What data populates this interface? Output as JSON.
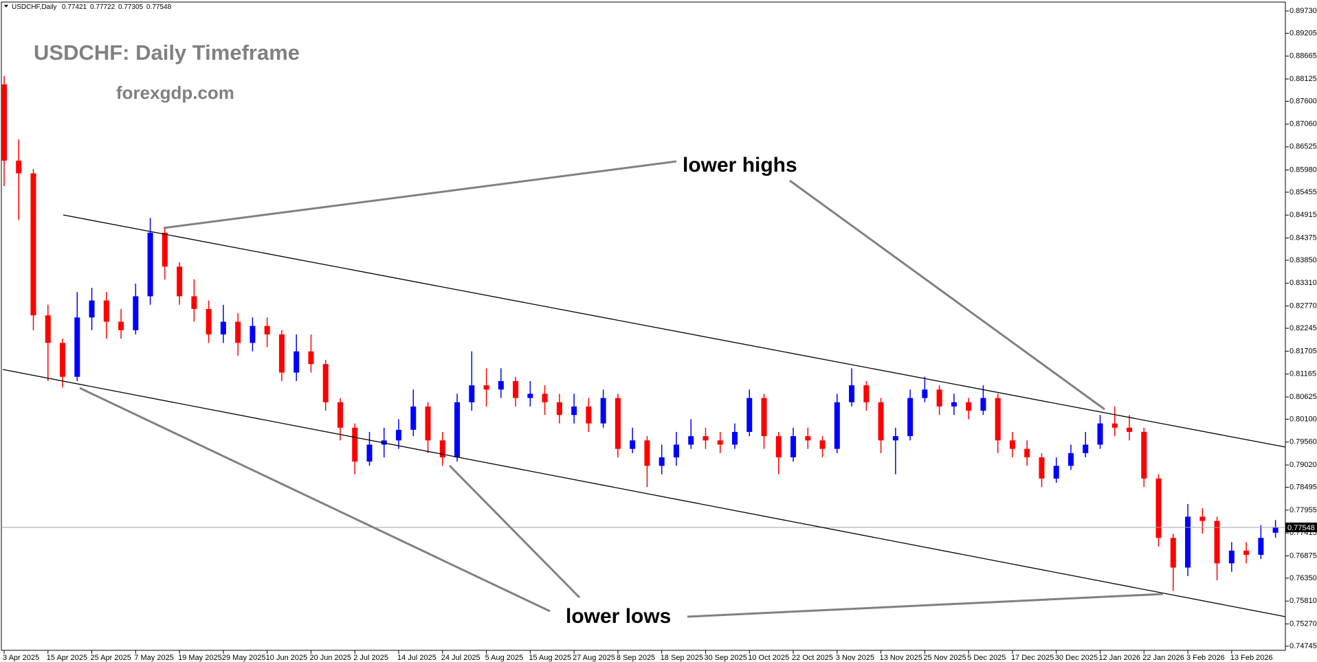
{
  "chart_data": {
    "type": "candlestick",
    "symbol": "USDCHF,Daily",
    "title": "USDCHF: Daily Timeframe",
    "subtitle": "forexgdp.com",
    "annotations": [
      "lower highs",
      "lower lows"
    ],
    "up_color": "#0000ff",
    "down_color": "#ff0000",
    "ylim": [
      0.74745,
      0.8973
    ],
    "yticks": [
      {
        "value": 0.8973,
        "label": "0.89730"
      },
      0.89205,
      0.88665,
      0.88125,
      {
        "value": 0.876,
        "label": "0.87600"
      },
      {
        "value": 0.8706,
        "label": "0.87060"
      },
      0.86525,
      {
        "value": 0.8598,
        "label": "0.85980"
      },
      0.85455,
      0.84915,
      0.84375,
      {
        "value": 0.8385,
        "label": "0.83850"
      },
      {
        "value": 0.8331,
        "label": "0.83310"
      },
      {
        "value": 0.8277,
        "label": "0.82770"
      },
      0.82245,
      0.81705,
      0.81165,
      0.80625,
      {
        "value": 0.801,
        "label": "0.80100"
      },
      {
        "value": 0.7956,
        "label": "0.79560"
      },
      {
        "value": 0.7902,
        "label": "0.79020"
      },
      0.78495,
      0.77955,
      0.77415,
      0.76875,
      {
        "value": 0.7635,
        "label": "0.76350"
      },
      {
        "value": 0.7581,
        "label": "0.75810"
      },
      {
        "value": 0.7527,
        "label": "0.75270"
      },
      0.74745
    ],
    "categories": [
      "3 Apr 2025",
      null,
      null,
      "15 Apr 2025",
      null,
      null,
      "25 Apr 2025",
      null,
      null,
      "7 May 2025",
      null,
      null,
      "19 May 2025",
      null,
      null,
      "29 May 2025",
      null,
      null,
      "10 Jun 2025",
      null,
      null,
      "20 Jun 2025",
      null,
      null,
      "2 Jul 2025",
      null,
      null,
      "14 Jul 2025",
      null,
      null,
      "24 Jul 2025",
      null,
      null,
      "5 Aug 2025",
      null,
      null,
      "15 Aug 2025",
      null,
      null,
      "27 Aug 2025",
      null,
      null,
      "8 Sep 2025",
      null,
      null,
      "18 Sep 2025",
      null,
      null,
      "30 Sep 2025",
      null,
      null,
      "10 Oct 2025",
      null,
      null,
      "22 Oct 2025",
      null,
      null,
      "3 Nov 2025",
      null,
      null,
      "13 Nov 2025",
      null,
      null,
      "25 Nov 2025",
      null,
      null,
      "5 Dec 2025",
      null,
      null,
      "17 Dec 2025",
      null,
      null,
      "30 Dec 2025",
      null,
      null,
      "12 Jan 2026",
      null,
      null,
      "22 Jan 2026",
      null,
      null,
      "3 Feb 2026",
      null,
      null,
      "13 Feb 2026",
      null,
      null,
      null
    ],
    "open": [
      0.88,
      0.862,
      0.859,
      0.8255,
      0.819,
      0.811,
      0.825,
      0.829,
      0.824,
      0.822,
      0.83,
      0.845,
      0.837,
      0.83,
      0.827,
      0.821,
      0.824,
      0.819,
      0.823,
      0.821,
      0.812,
      0.817,
      0.814,
      0.805,
      0.799,
      0.791,
      0.795,
      0.796,
      0.7985,
      0.804,
      0.796,
      0.792,
      0.805,
      0.809,
      0.808,
      0.81,
      0.806,
      0.807,
      0.805,
      0.802,
      0.804,
      0.8,
      0.806,
      0.794,
      0.796,
      0.79,
      0.792,
      0.795,
      0.797,
      0.796,
      0.795,
      0.798,
      0.806,
      0.797,
      0.792,
      0.797,
      0.796,
      0.794,
      0.805,
      0.809,
      0.805,
      0.796,
      0.797,
      0.806,
      0.808,
      0.804,
      0.805,
      0.803,
      0.806,
      0.796,
      0.794,
      0.792,
      0.787,
      0.79,
      0.793,
      0.795,
      0.8,
      0.799,
      0.798,
      0.787,
      0.773,
      0.766,
      0.778,
      0.777,
      0.767,
      0.77,
      0.769,
      0.77421
    ],
    "high": [
      0.882,
      0.867,
      0.86,
      0.828,
      0.82,
      0.831,
      0.832,
      0.831,
      0.827,
      0.833,
      0.8485,
      0.846,
      0.838,
      0.834,
      0.829,
      0.828,
      0.826,
      0.825,
      0.825,
      0.822,
      0.821,
      0.821,
      0.815,
      0.806,
      0.8,
      0.798,
      0.799,
      0.801,
      0.808,
      0.805,
      0.798,
      0.807,
      0.817,
      0.813,
      0.813,
      0.811,
      0.81,
      0.809,
      0.807,
      0.807,
      0.806,
      0.808,
      0.807,
      0.799,
      0.797,
      0.795,
      0.798,
      0.801,
      0.799,
      0.798,
      0.8,
      0.808,
      0.807,
      0.798,
      0.799,
      0.799,
      0.797,
      0.807,
      0.813,
      0.81,
      0.806,
      0.799,
      0.808,
      0.811,
      0.809,
      0.807,
      0.806,
      0.809,
      0.807,
      0.798,
      0.796,
      0.793,
      0.792,
      0.795,
      0.798,
      0.802,
      0.804,
      0.802,
      0.799,
      0.788,
      0.774,
      0.781,
      0.78,
      0.778,
      0.772,
      0.772,
      0.776,
      0.77722
    ],
    "low": [
      0.856,
      0.848,
      0.822,
      0.81,
      0.8085,
      0.81,
      0.822,
      0.82,
      0.82,
      0.821,
      0.828,
      0.834,
      0.828,
      0.824,
      0.819,
      0.819,
      0.816,
      0.817,
      0.818,
      0.81,
      0.81,
      0.812,
      0.803,
      0.796,
      0.788,
      0.79,
      0.792,
      0.794,
      0.797,
      0.793,
      0.79,
      0.791,
      0.803,
      0.804,
      0.806,
      0.804,
      0.804,
      0.802,
      0.8,
      0.8,
      0.798,
      0.799,
      0.792,
      0.793,
      0.785,
      0.788,
      0.79,
      0.794,
      0.794,
      0.793,
      0.794,
      0.797,
      0.794,
      0.788,
      0.791,
      0.794,
      0.792,
      0.793,
      0.804,
      0.803,
      0.793,
      0.788,
      0.796,
      0.805,
      0.802,
      0.802,
      0.801,
      0.802,
      0.793,
      0.792,
      0.79,
      0.785,
      0.786,
      0.789,
      0.792,
      0.794,
      0.797,
      0.796,
      0.785,
      0.771,
      0.7605,
      0.764,
      0.774,
      0.763,
      0.765,
      0.767,
      0.768,
      0.77305
    ],
    "close": [
      0.862,
      0.859,
      0.8255,
      0.819,
      0.811,
      0.825,
      0.829,
      0.824,
      0.822,
      0.83,
      0.845,
      0.837,
      0.83,
      0.827,
      0.821,
      0.824,
      0.819,
      0.823,
      0.821,
      0.812,
      0.817,
      0.814,
      0.805,
      0.799,
      0.791,
      0.795,
      0.796,
      0.7985,
      0.804,
      0.796,
      0.792,
      0.805,
      0.809,
      0.808,
      0.81,
      0.806,
      0.807,
      0.805,
      0.802,
      0.804,
      0.8,
      0.806,
      0.794,
      0.796,
      0.79,
      0.792,
      0.795,
      0.797,
      0.796,
      0.795,
      0.798,
      0.806,
      0.797,
      0.792,
      0.797,
      0.796,
      0.794,
      0.805,
      0.809,
      0.805,
      0.796,
      0.797,
      0.806,
      0.808,
      0.804,
      0.805,
      0.803,
      0.806,
      0.796,
      0.794,
      0.792,
      0.787,
      0.79,
      0.793,
      0.795,
      0.8,
      0.799,
      0.798,
      0.787,
      0.773,
      0.766,
      0.778,
      0.777,
      0.767,
      0.77,
      0.769,
      0.773,
      0.77548
    ]
  }
}
